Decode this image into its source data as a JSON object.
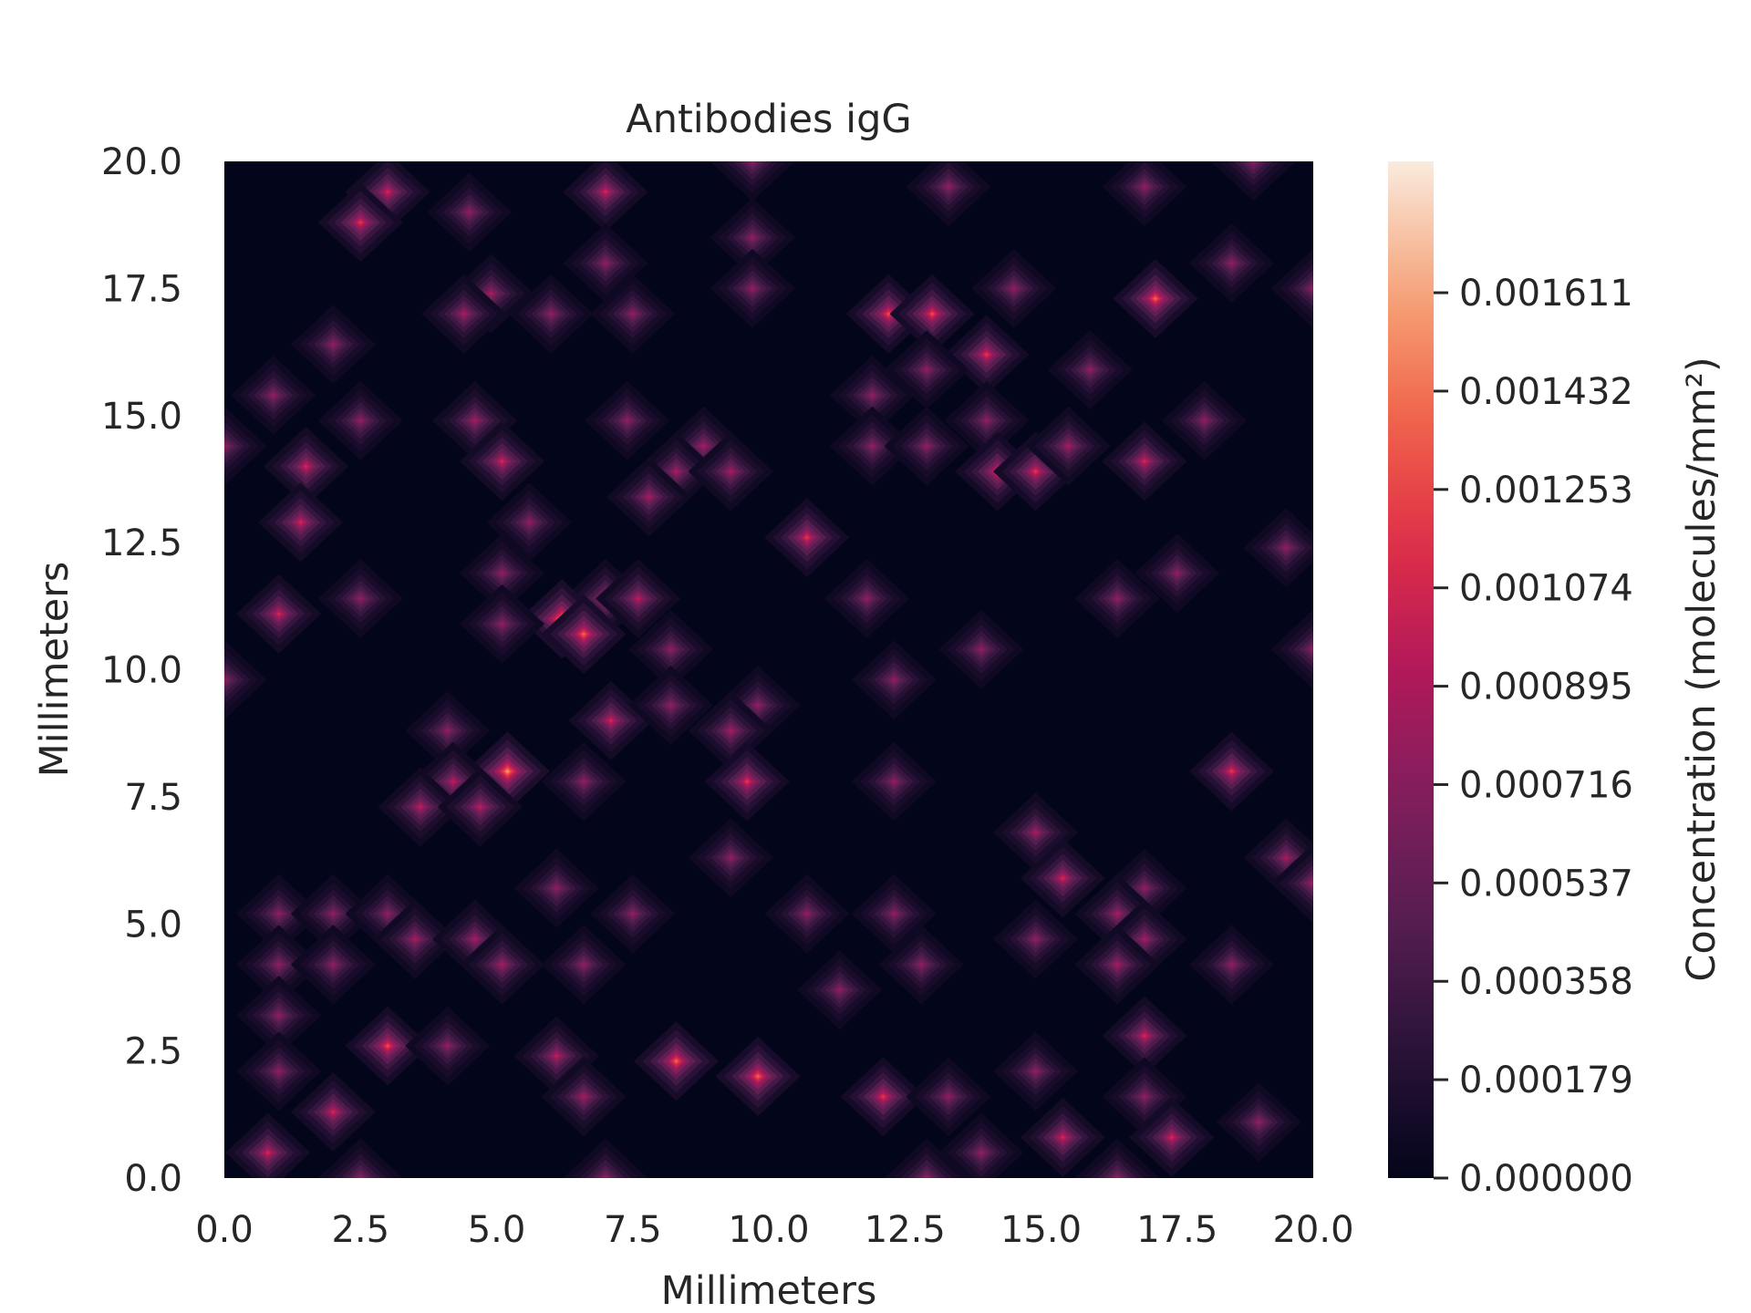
{
  "chart_data": {
    "type": "heatmap",
    "title": "Antibodies igG",
    "xlabel": "Millimeters",
    "ylabel": "Millimeters",
    "colorbar_label": "Concentration (molecules/mm²)",
    "xlim": [
      0,
      20
    ],
    "ylim": [
      0,
      20
    ],
    "xticks": [
      "0.0",
      "2.5",
      "5.0",
      "7.5",
      "10.0",
      "12.5",
      "15.0",
      "17.5",
      "20.0"
    ],
    "yticks": [
      "0.0",
      "2.5",
      "5.0",
      "7.5",
      "10.0",
      "12.5",
      "15.0",
      "17.5",
      "20.0"
    ],
    "colorbar_range": [
      0,
      0.00185
    ],
    "colorbar_ticks": [
      "0.000000",
      "0.000179",
      "0.000358",
      "0.000537",
      "0.000716",
      "0.000895",
      "0.001074",
      "0.001253",
      "0.001432",
      "0.001611"
    ],
    "colormap": "rocket",
    "grid": false,
    "peaks": [
      [
        3.0,
        19.4,
        0.0011
      ],
      [
        2.5,
        18.8,
        0.0012
      ],
      [
        4.5,
        19.0,
        0.0008
      ],
      [
        7.0,
        19.4,
        0.0011
      ],
      [
        9.7,
        20.0,
        0.0008
      ],
      [
        9.7,
        18.5,
        0.0008
      ],
      [
        9.7,
        17.5,
        0.0008
      ],
      [
        13.3,
        19.5,
        0.0008
      ],
      [
        16.9,
        19.5,
        0.0008
      ],
      [
        18.9,
        20.0,
        0.0008
      ],
      [
        7.0,
        18.0,
        0.0008
      ],
      [
        7.5,
        17.0,
        0.0008
      ],
      [
        18.5,
        18.0,
        0.0008
      ],
      [
        20.0,
        17.5,
        0.0008
      ],
      [
        4.9,
        17.4,
        0.0009
      ],
      [
        4.4,
        17.0,
        0.0009
      ],
      [
        6.0,
        17.0,
        0.0008
      ],
      [
        2.0,
        16.4,
        0.0008
      ],
      [
        12.2,
        17.0,
        0.0013
      ],
      [
        13.0,
        17.0,
        0.0013
      ],
      [
        14.0,
        16.2,
        0.0012
      ],
      [
        14.5,
        17.5,
        0.0008
      ],
      [
        17.1,
        17.3,
        0.0014
      ],
      [
        12.9,
        15.9,
        0.0008
      ],
      [
        15.9,
        15.9,
        0.0008
      ],
      [
        0.9,
        15.4,
        0.0008
      ],
      [
        11.9,
        15.4,
        0.0008
      ],
      [
        2.5,
        14.9,
        0.0008
      ],
      [
        7.4,
        14.9,
        0.0008
      ],
      [
        14.0,
        14.9,
        0.0008
      ],
      [
        18.0,
        14.9,
        0.0008
      ],
      [
        4.6,
        14.9,
        0.0009
      ],
      [
        5.1,
        14.1,
        0.0011
      ],
      [
        1.5,
        14.0,
        0.0011
      ],
      [
        0.0,
        14.4,
        0.0008
      ],
      [
        11.9,
        14.4,
        0.0008
      ],
      [
        12.9,
        14.4,
        0.0008
      ],
      [
        8.8,
        14.4,
        0.0009
      ],
      [
        8.3,
        13.9,
        0.0009
      ],
      [
        7.8,
        13.4,
        0.0009
      ],
      [
        9.3,
        13.9,
        0.0009
      ],
      [
        14.2,
        13.9,
        0.0012
      ],
      [
        14.9,
        13.9,
        0.0012
      ],
      [
        15.5,
        14.4,
        0.0009
      ],
      [
        16.9,
        14.1,
        0.0011
      ],
      [
        1.4,
        12.9,
        0.0011
      ],
      [
        5.6,
        12.9,
        0.0008
      ],
      [
        10.7,
        12.6,
        0.0012
      ],
      [
        19.5,
        12.4,
        0.0008
      ],
      [
        5.1,
        11.9,
        0.0008
      ],
      [
        17.5,
        11.9,
        0.0008
      ],
      [
        2.5,
        11.4,
        0.0008
      ],
      [
        11.8,
        11.4,
        0.0008
      ],
      [
        16.4,
        11.4,
        0.0008
      ],
      [
        7.0,
        11.4,
        0.001
      ],
      [
        7.6,
        11.4,
        0.001
      ],
      [
        1.0,
        11.1,
        0.0011
      ],
      [
        6.2,
        11.0,
        0.0016
      ],
      [
        6.6,
        10.7,
        0.0014
      ],
      [
        5.1,
        10.9,
        0.0008
      ],
      [
        8.2,
        10.4,
        0.0008
      ],
      [
        13.9,
        10.4,
        0.0008
      ],
      [
        20.0,
        10.4,
        0.0008
      ],
      [
        0.0,
        9.8,
        0.0008
      ],
      [
        12.3,
        9.8,
        0.0008
      ],
      [
        7.1,
        9.0,
        0.0011
      ],
      [
        8.2,
        9.3,
        0.0008
      ],
      [
        9.8,
        9.3,
        0.0008
      ],
      [
        9.3,
        8.8,
        0.0009
      ],
      [
        4.1,
        8.8,
        0.0008
      ],
      [
        5.2,
        8.0,
        0.0016
      ],
      [
        4.2,
        7.8,
        0.001
      ],
      [
        3.6,
        7.3,
        0.001
      ],
      [
        4.7,
        7.3,
        0.001
      ],
      [
        6.6,
        7.8,
        0.0008
      ],
      [
        9.6,
        7.8,
        0.0012
      ],
      [
        12.3,
        7.8,
        0.0008
      ],
      [
        18.5,
        8.0,
        0.0012
      ],
      [
        14.9,
        6.8,
        0.0009
      ],
      [
        15.4,
        5.9,
        0.0011
      ],
      [
        9.3,
        6.3,
        0.0008
      ],
      [
        19.5,
        6.3,
        0.0009
      ],
      [
        20.0,
        5.8,
        0.0009
      ],
      [
        6.1,
        5.7,
        0.0008
      ],
      [
        16.9,
        5.7,
        0.0008
      ],
      [
        1.0,
        5.2,
        0.0008
      ],
      [
        2.0,
        5.2,
        0.0008
      ],
      [
        3.0,
        5.2,
        0.0008
      ],
      [
        7.5,
        5.2,
        0.0008
      ],
      [
        10.7,
        5.2,
        0.0008
      ],
      [
        12.3,
        5.2,
        0.0008
      ],
      [
        16.4,
        5.2,
        0.0009
      ],
      [
        16.9,
        4.7,
        0.0009
      ],
      [
        3.5,
        4.7,
        0.0009
      ],
      [
        4.6,
        4.7,
        0.0009
      ],
      [
        5.1,
        4.2,
        0.0009
      ],
      [
        14.9,
        4.7,
        0.0008
      ],
      [
        1.0,
        4.2,
        0.0008
      ],
      [
        2.0,
        4.2,
        0.0008
      ],
      [
        6.6,
        4.2,
        0.0008
      ],
      [
        12.8,
        4.2,
        0.0008
      ],
      [
        16.4,
        4.2,
        0.0009
      ],
      [
        18.5,
        4.2,
        0.0008
      ],
      [
        11.3,
        3.7,
        0.0008
      ],
      [
        1.0,
        3.2,
        0.0008
      ],
      [
        3.0,
        2.6,
        0.0013
      ],
      [
        16.9,
        2.8,
        0.0011
      ],
      [
        4.1,
        2.6,
        0.0008
      ],
      [
        6.1,
        2.4,
        0.001
      ],
      [
        8.3,
        2.3,
        0.0014
      ],
      [
        1.0,
        2.1,
        0.0008
      ],
      [
        9.8,
        2.0,
        0.0014
      ],
      [
        14.9,
        2.1,
        0.0008
      ],
      [
        6.6,
        1.6,
        0.0009
      ],
      [
        2.0,
        1.3,
        0.0011
      ],
      [
        12.1,
        1.6,
        0.0012
      ],
      [
        13.3,
        1.6,
        0.0008
      ],
      [
        16.9,
        1.6,
        0.0008
      ],
      [
        17.4,
        0.8,
        0.0011
      ],
      [
        15.4,
        0.8,
        0.0011
      ],
      [
        19.0,
        1.1,
        0.0008
      ],
      [
        0.8,
        0.5,
        0.0011
      ],
      [
        13.9,
        0.5,
        0.0008
      ],
      [
        2.5,
        0.0,
        0.0008
      ],
      [
        7.0,
        0.0,
        0.0008
      ],
      [
        12.9,
        0.0,
        0.0008
      ],
      [
        16.4,
        0.0,
        0.0008
      ]
    ]
  }
}
